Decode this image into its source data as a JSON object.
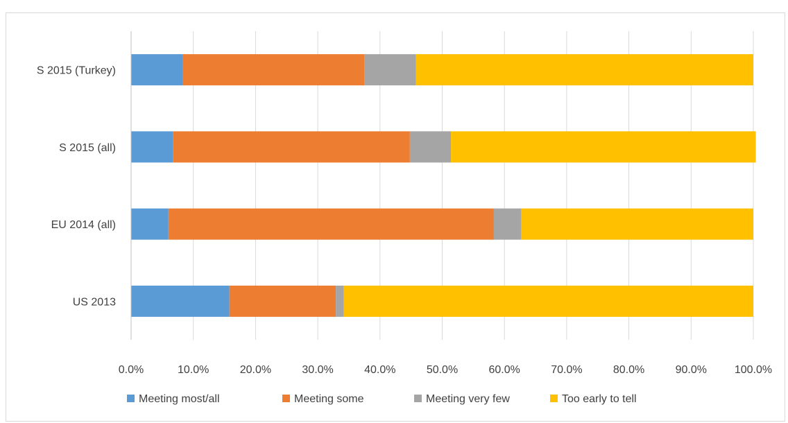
{
  "chart_data": {
    "type": "bar",
    "orientation": "horizontal",
    "stacked": true,
    "categories": [
      "S 2015 (Turkey)",
      "S 2015 (all)",
      "EU 2014 (all)",
      "US 2013"
    ],
    "series": [
      {
        "name": "Meeting most/all",
        "color": "#5b9bd5",
        "values": [
          8.3,
          6.7,
          6.0,
          15.8
        ]
      },
      {
        "name": "Meeting some",
        "color": "#ed7d31",
        "values": [
          29.2,
          38.1,
          52.3,
          17.1
        ]
      },
      {
        "name": "Meeting very few",
        "color": "#a5a5a5",
        "values": [
          8.3,
          6.6,
          4.4,
          1.3
        ]
      },
      {
        "name": "Too early to tell",
        "color": "#ffc000",
        "values": [
          54.2,
          49.0,
          37.3,
          65.8
        ]
      }
    ],
    "x_ticks": [
      "0.0%",
      "10.0%",
      "20.0%",
      "30.0%",
      "40.0%",
      "50.0%",
      "60.0%",
      "70.0%",
      "80.0%",
      "90.0%",
      "100.0%"
    ],
    "xlim": [
      0,
      100
    ],
    "grid": true,
    "legend_position": "bottom"
  }
}
